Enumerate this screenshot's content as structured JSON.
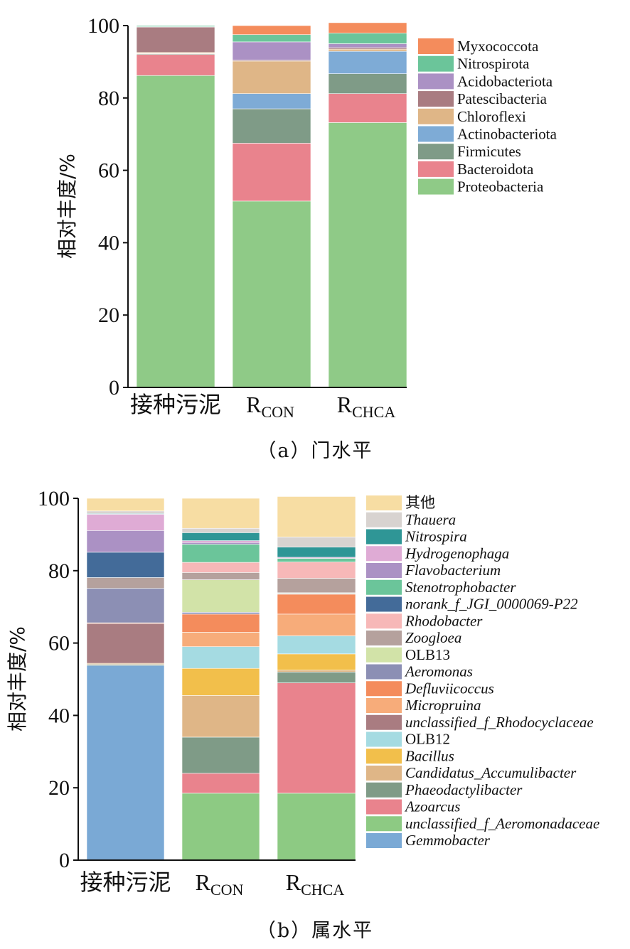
{
  "chart_data": [
    {
      "type": "bar",
      "stacked": true,
      "caption": "（a）门水平",
      "ylabel": "相对丰度/%",
      "ylim": [
        0,
        100
      ],
      "yticks": [
        0,
        20,
        40,
        60,
        80,
        100
      ],
      "categories": [
        {
          "main": "接种污泥",
          "sub": ""
        },
        {
          "main": "R",
          "sub": "CON"
        },
        {
          "main": "R",
          "sub": "CHCA"
        }
      ],
      "legend_placement": "top-right",
      "series": [
        {
          "name": "Proteobacteria",
          "italic": false,
          "color": "#8fca87",
          "values": [
            86.2,
            51.5,
            73.2
          ]
        },
        {
          "name": "Bacteroidota",
          "italic": false,
          "color": "#e9838d",
          "values": [
            5.8,
            16.0,
            8.0
          ]
        },
        {
          "name": "Firmicutes",
          "italic": false,
          "color": "#7f9b87",
          "values": [
            0.2,
            9.5,
            5.5
          ]
        },
        {
          "name": "Actinobacteriota",
          "italic": false,
          "color": "#7eabd6",
          "values": [
            0.1,
            4.2,
            6.2
          ]
        },
        {
          "name": "Chloroflexi",
          "italic": false,
          "color": "#dfb687",
          "values": [
            0.3,
            9.0,
            0.6
          ]
        },
        {
          "name": "Patescibacteria",
          "italic": false,
          "color": "#a97c81",
          "values": [
            7.0,
            0.3,
            0.4
          ]
        },
        {
          "name": "Acidobacteriota",
          "italic": false,
          "color": "#ab91c4",
          "values": [
            0.1,
            5.0,
            1.1
          ]
        },
        {
          "name": "Nitrospirota",
          "italic": false,
          "color": "#6bc59a",
          "values": [
            0.3,
            2.0,
            2.9
          ]
        },
        {
          "name": "Myxococcota",
          "italic": false,
          "color": "#f48c5c",
          "values": [
            0.0,
            2.5,
            2.9
          ]
        }
      ]
    },
    {
      "type": "bar",
      "stacked": true,
      "caption": "（b）属水平",
      "ylabel": "相对丰度/%",
      "ylim": [
        0,
        100
      ],
      "yticks": [
        0,
        20,
        40,
        60,
        80,
        100
      ],
      "categories": [
        {
          "main": "接种污泥",
          "sub": ""
        },
        {
          "main": "R",
          "sub": "CON"
        },
        {
          "main": "R",
          "sub": "CHCA"
        }
      ],
      "legend_placement": "right",
      "series": [
        {
          "name": "Gemmobacter",
          "italic": true,
          "color": "#7aa9d5",
          "values": [
            53.8,
            0.0,
            0.0
          ]
        },
        {
          "name": "unclassified_f_Aeromonadaceae",
          "italic": true,
          "color": "#8dca83",
          "values": [
            0.0,
            18.5,
            18.5
          ]
        },
        {
          "name": "Azoarcus",
          "italic": true,
          "color": "#e9838d",
          "values": [
            0.0,
            5.5,
            30.5
          ]
        },
        {
          "name": "Phaeodactylibacter",
          "italic": true,
          "color": "#7f9b87",
          "values": [
            0.3,
            10.0,
            3.0
          ]
        },
        {
          "name": "Candidatus_Accumulibacter",
          "italic": true,
          "color": "#dfb687",
          "values": [
            0.3,
            11.5,
            0.5
          ]
        },
        {
          "name": "Bacillus",
          "italic": true,
          "color": "#f2bf4b",
          "values": [
            0.0,
            7.5,
            4.5
          ]
        },
        {
          "name": "OLB12",
          "italic": false,
          "color": "#a5dbe2",
          "values": [
            0.0,
            6.0,
            5.0
          ]
        },
        {
          "name": "unclassified_f_Rhodocyclaceae",
          "italic": true,
          "color": "#a97c81",
          "values": [
            11.0,
            0.0,
            0.0
          ]
        },
        {
          "name": "Micropruina",
          "italic": true,
          "color": "#f7ac7a",
          "values": [
            0.0,
            4.0,
            6.0
          ]
        },
        {
          "name": "Defluviicoccus",
          "italic": true,
          "color": "#f48c5c",
          "values": [
            0.2,
            5.0,
            5.5
          ]
        },
        {
          "name": "Aeromonas",
          "italic": true,
          "color": "#8c8fb4",
          "values": [
            9.5,
            0.5,
            0.2
          ]
        },
        {
          "name": "OLB13",
          "italic": false,
          "color": "#d2e3a8",
          "values": [
            0.0,
            9.0,
            0.2
          ]
        },
        {
          "name": "Zoogloea",
          "italic": true,
          "color": "#b5a19d",
          "values": [
            3.0,
            2.0,
            4.0
          ]
        },
        {
          "name": "Rhodobacter",
          "italic": true,
          "color": "#f7b8b8",
          "values": [
            0.0,
            2.8,
            4.5
          ]
        },
        {
          "name": "norank_f_JGI_0000069-P22",
          "italic": true,
          "color": "#436b99",
          "values": [
            7.0,
            0.0,
            0.0
          ]
        },
        {
          "name": "Stenotrophobacter",
          "italic": true,
          "color": "#6bc59a",
          "values": [
            0.0,
            5.0,
            1.0
          ]
        },
        {
          "name": "Flavobacterium",
          "italic": true,
          "color": "#ab91c4",
          "values": [
            6.0,
            0.5,
            0.0
          ]
        },
        {
          "name": "Hydrogenophaga",
          "italic": true,
          "color": "#dfabd5",
          "values": [
            4.5,
            0.5,
            0.3
          ]
        },
        {
          "name": "Nitrospira",
          "italic": true,
          "color": "#2f9696",
          "values": [
            0.2,
            2.2,
            2.8
          ]
        },
        {
          "name": "Thauera",
          "italic": true,
          "color": "#d8d3d0",
          "values": [
            0.7,
            1.2,
            2.8
          ]
        },
        {
          "name": "其他",
          "italic": false,
          "color": "#f7dda3",
          "values": [
            3.5,
            8.3,
            11.2
          ]
        }
      ]
    }
  ]
}
